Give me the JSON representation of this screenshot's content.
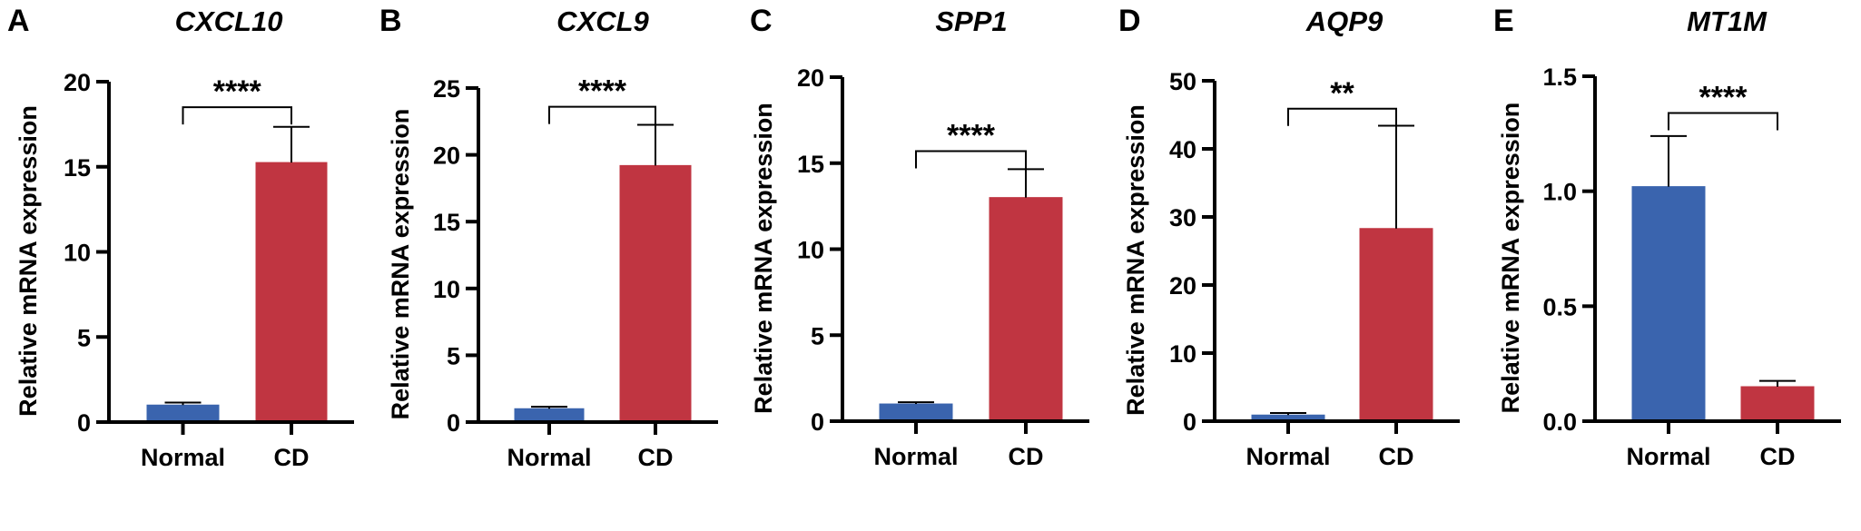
{
  "chart_data": [
    {
      "type": "bar",
      "panel": "A",
      "title": "CXCL10",
      "ylabel": "Relative mRNA expression",
      "xlabel": "",
      "categories": [
        "Normal",
        "CD"
      ],
      "values": [
        1.0,
        15.25
      ],
      "error_upper": [
        1.15,
        17.35
      ],
      "ylim": [
        0,
        20
      ],
      "yticks": [
        0,
        5,
        10,
        15,
        20
      ],
      "ytick_labels": [
        "0",
        "5",
        "10",
        "15",
        "20"
      ],
      "significance": "****",
      "bracket_y": 18.5,
      "colors": [
        "#3a64ae",
        "#c03541"
      ]
    },
    {
      "type": "bar",
      "panel": "B",
      "title": "CXCL9",
      "ylabel": "Relative mRNA expression",
      "xlabel": "",
      "categories": [
        "Normal",
        "CD"
      ],
      "values": [
        1.0,
        19.2
      ],
      "error_upper": [
        1.15,
        22.25
      ],
      "ylim": [
        0,
        25
      ],
      "yticks": [
        0,
        5,
        10,
        15,
        20,
        25
      ],
      "ytick_labels": [
        "0",
        "5",
        "10",
        "15",
        "20",
        "25"
      ],
      "significance": "****",
      "bracket_y": 23.6,
      "colors": [
        "#3a64ae",
        "#c03541"
      ]
    },
    {
      "type": "bar",
      "panel": "C",
      "title": "SPP1",
      "ylabel": "Relative mRNA expression",
      "xlabel": "",
      "categories": [
        "Normal",
        "CD"
      ],
      "values": [
        1.0,
        13.0
      ],
      "error_upper": [
        1.1,
        14.65
      ],
      "ylim": [
        0,
        20
      ],
      "yticks": [
        0,
        5,
        10,
        15,
        20
      ],
      "ytick_labels": [
        "0",
        "5",
        "10",
        "15",
        "20"
      ],
      "significance": "****",
      "bracket_y": 15.7,
      "colors": [
        "#3a64ae",
        "#c03541"
      ]
    },
    {
      "type": "bar",
      "panel": "D",
      "title": "AQP9",
      "ylabel": "Relative mRNA expression",
      "xlabel": "",
      "categories": [
        "Normal",
        "CD"
      ],
      "values": [
        0.9,
        28.3
      ],
      "error_upper": [
        1.2,
        43.4
      ],
      "ylim": [
        0,
        50
      ],
      "yticks": [
        0,
        10,
        20,
        30,
        40,
        50
      ],
      "ytick_labels": [
        "0",
        "10",
        "20",
        "30",
        "40",
        "50"
      ],
      "significance": "**",
      "bracket_y": 45.9,
      "colors": [
        "#3a64ae",
        "#c03541"
      ]
    },
    {
      "type": "bar",
      "panel": "E",
      "title": "MT1M",
      "ylabel": "Relative mRNA expression",
      "xlabel": "",
      "categories": [
        "Normal",
        "CD"
      ],
      "values": [
        1.02,
        0.15
      ],
      "error_upper": [
        1.24,
        0.175
      ],
      "ylim": [
        0,
        1.5
      ],
      "yticks": [
        0,
        0.5,
        1.0,
        1.5
      ],
      "ytick_labels": [
        "0.0",
        "0.5",
        "1.0",
        "1.5"
      ],
      "significance": "****",
      "bracket_y": 1.34,
      "colors": [
        "#3a64ae",
        "#c03541"
      ]
    }
  ]
}
